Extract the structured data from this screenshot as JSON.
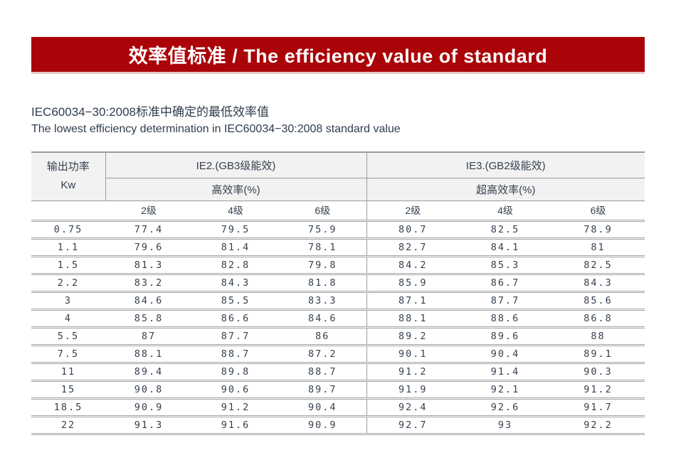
{
  "banner": {
    "title": "效率值标准 / The efficiency value of standard",
    "bg_color": "#aa0308",
    "strip_color": "#e9c6c8"
  },
  "intro": {
    "line1_zh": "IEC60034−30:2008标准中确定的最低效率值",
    "line2_en": "The lowest efficiency determination in IEC60034−30:2008 standard value"
  },
  "table": {
    "power_header": {
      "line1": "输出功率",
      "line2": "Kw"
    },
    "groups": [
      {
        "title": "IE2.(GB3级能效)",
        "subtitle": "高效率(%)"
      },
      {
        "title": "IE3.(GB2级能效)",
        "subtitle": "超高效率(%)"
      }
    ],
    "pole_headers": [
      "2级",
      "4级",
      "6级",
      "2级",
      "4级",
      "6级"
    ],
    "rows": [
      {
        "kw": "0.75",
        "values": [
          "77.4",
          "79.5",
          "75.9",
          "80.7",
          "82.5",
          "78.9"
        ]
      },
      {
        "kw": "1.1",
        "values": [
          "79.6",
          "81.4",
          "78.1",
          "82.7",
          "84.1",
          "81"
        ]
      },
      {
        "kw": "1.5",
        "values": [
          "81.3",
          "82.8",
          "79.8",
          "84.2",
          "85.3",
          "82.5"
        ]
      },
      {
        "kw": "2.2",
        "values": [
          "83.2",
          "84.3",
          "81.8",
          "85.9",
          "86.7",
          "84.3"
        ]
      },
      {
        "kw": "3",
        "values": [
          "84.6",
          "85.5",
          "83.3",
          "87.1",
          "87.7",
          "85.6"
        ]
      },
      {
        "kw": "4",
        "values": [
          "85.8",
          "86.6",
          "84.6",
          "88.1",
          "88.6",
          "86.8"
        ]
      },
      {
        "kw": "5.5",
        "values": [
          "87",
          "87.7",
          "86",
          "89.2",
          "89.6",
          "88"
        ]
      },
      {
        "kw": "7.5",
        "values": [
          "88.1",
          "88.7",
          "87.2",
          "90.1",
          "90.4",
          "89.1"
        ]
      },
      {
        "kw": "11",
        "values": [
          "89.4",
          "89.8",
          "88.7",
          "91.2",
          "91.4",
          "90.3"
        ]
      },
      {
        "kw": "15",
        "values": [
          "90.8",
          "90.6",
          "89.7",
          "91.9",
          "92.1",
          "91.2"
        ]
      },
      {
        "kw": "18.5",
        "values": [
          "90.9",
          "91.2",
          "90.4",
          "92.4",
          "92.6",
          "91.7"
        ]
      },
      {
        "kw": "22",
        "values": [
          "91.3",
          "91.6",
          "90.9",
          "92.7",
          "93",
          "92.2"
        ]
      }
    ],
    "colors": {
      "text": "#35414f",
      "border": "#9b9b9b",
      "header_bg": "#f2f2f2"
    }
  }
}
